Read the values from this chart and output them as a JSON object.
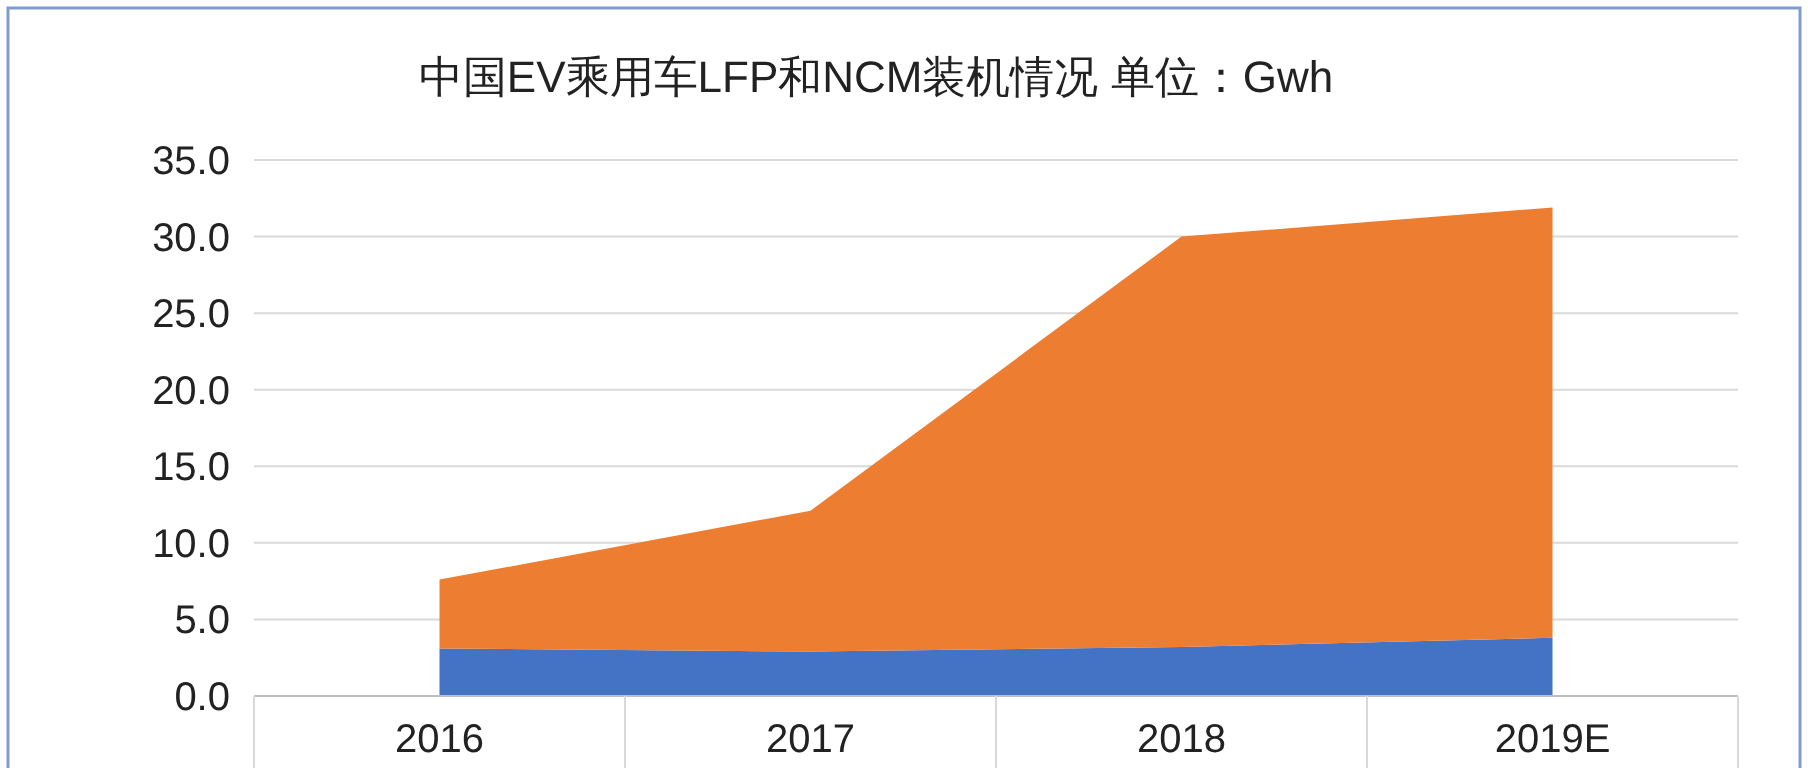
{
  "chart_data": {
    "type": "area",
    "title": "中国EV乘用车LFP和NCM装机情况 单位：Gwh",
    "categories": [
      "2016",
      "2017",
      "2018",
      "2019E"
    ],
    "stacked": true,
    "series": [
      {
        "color": "#4472c4",
        "values": [
          3.1,
          2.9,
          3.2,
          3.8
        ]
      },
      {
        "color": "#ed7d31",
        "values": [
          4.5,
          9.2,
          26.8,
          28.1
        ]
      }
    ],
    "ylim": [
      0,
      35
    ],
    "yticks": [
      {
        "value": 0,
        "label": "0.0"
      },
      {
        "value": 5,
        "label": "5.0"
      },
      {
        "value": 10,
        "label": "10.0"
      },
      {
        "value": 15,
        "label": "15.0"
      },
      {
        "value": 20,
        "label": "20.0"
      },
      {
        "value": 25,
        "label": "25.0"
      },
      {
        "value": 30,
        "label": "30.0"
      },
      {
        "value": 35,
        "label": "35.0"
      }
    ],
    "grid": "y"
  }
}
